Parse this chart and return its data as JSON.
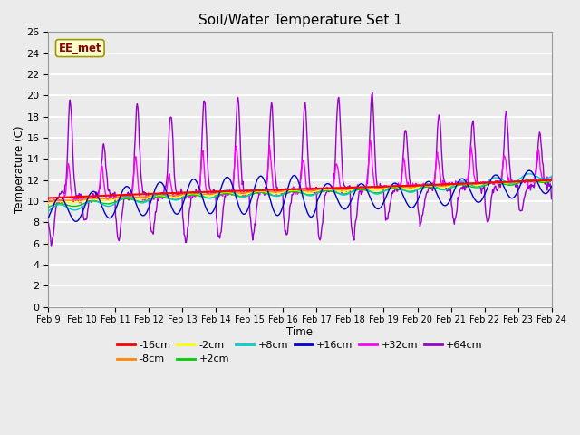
{
  "title": "Soil/Water Temperature Set 1",
  "xlabel": "Time",
  "ylabel": "Temperature (C)",
  "ylim": [
    0,
    26
  ],
  "yticks": [
    0,
    2,
    4,
    6,
    8,
    10,
    12,
    14,
    16,
    18,
    20,
    22,
    24,
    26
  ],
  "x_labels": [
    "Feb 9",
    "Feb 10",
    "Feb 11",
    "Feb 12",
    "Feb 13",
    "Feb 14",
    "Feb 15",
    "Feb 16",
    "Feb 17",
    "Feb 18",
    "Feb 19",
    "Feb 20",
    "Feb 21",
    "Feb 22",
    "Feb 23",
    "Feb 24"
  ],
  "annotation_text": "EE_met",
  "series_colors": {
    "-16cm": "#ff0000",
    "-8cm": "#ff8800",
    "-2cm": "#ffff00",
    "+2cm": "#00cc00",
    "+8cm": "#00cccc",
    "+16cm": "#0000cc",
    "+32cm": "#ff00ff",
    "+64cm": "#9900cc"
  },
  "background_color": "#ebebeb",
  "plot_bg_color": "#ebebeb",
  "grid_color": "#ffffff",
  "title_fontsize": 11
}
